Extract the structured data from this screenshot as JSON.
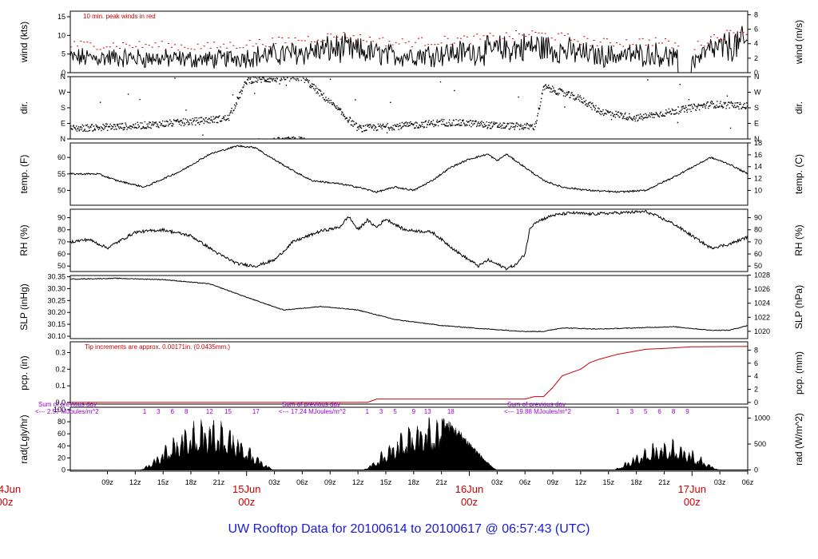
{
  "chart_data": {
    "type": "line",
    "title": "UW Rooftop Data for 20100614  to  20100617 @ 06:57:43  (UTC)",
    "x_hour_labels": [
      "09z",
      "12z",
      "15z",
      "18z",
      "21z",
      "03z",
      "06z",
      "09z",
      "12z",
      "15z",
      "18z",
      "21z",
      "03z",
      "06z",
      "09z",
      "12z",
      "15z",
      "18z",
      "21z",
      "03z",
      "06z"
    ],
    "day_labels": [
      {
        "top": "15Jun",
        "bottom": "00z"
      },
      {
        "top": "16Jun",
        "bottom": "00z"
      },
      {
        "top": "17Jun",
        "bottom": "00z"
      }
    ],
    "left_cut_day_label": {
      "top": "4Jun",
      "bottom": "00z"
    },
    "x_range_hours": [
      5,
      78
    ],
    "panels": [
      {
        "id": "wind",
        "ylabel_left": "wind (kts)",
        "ylabel_right": "wind (m/s)",
        "ylim": [
          0,
          16.5
        ],
        "left_ticks": [
          "0",
          "5",
          "10",
          "15"
        ],
        "left_tick_values": [
          0,
          5,
          10,
          15
        ],
        "right_ticks": [
          "0",
          "2",
          "4",
          "6",
          "8"
        ],
        "right_tick_values": [
          0,
          2,
          4,
          6,
          8
        ],
        "right_factor": 1.944,
        "note": "10 min. peak winds in red",
        "series": [
          {
            "name": "wind speed",
            "color": "#000000"
          },
          {
            "name": "10 min peak",
            "color": "#cc0000"
          }
        ],
        "profile": {
          "x": [
            5,
            10,
            20,
            28,
            34,
            40,
            48,
            55,
            58,
            62,
            68,
            72,
            74,
            78
          ],
          "y": [
            4,
            4,
            3.5,
            5,
            6.5,
            4.5,
            5.5,
            7,
            6,
            4.5,
            5,
            3,
            6,
            8
          ]
        }
      },
      {
        "id": "dir",
        "ylabel_left": "dir.",
        "ylabel_right": "dir.",
        "ylim": [
          0,
          360
        ],
        "left_ticks": [
          "N",
          "E",
          "S",
          "W",
          "N"
        ],
        "left_tick_values": [
          0,
          90,
          180,
          270,
          360
        ],
        "right_ticks": [
          "N",
          "E",
          "S",
          "W",
          "N"
        ],
        "right_tick_values": [
          0,
          90,
          180,
          270,
          360
        ],
        "series": [
          {
            "name": "wind direction",
            "color": "#000000"
          }
        ],
        "profile": {
          "x": [
            5,
            12,
            18,
            22,
            24,
            30,
            36,
            42,
            45,
            48,
            50,
            52,
            55,
            56,
            60,
            62,
            66,
            70,
            74,
            78
          ],
          "y": [
            60,
            75,
            100,
            120,
            340,
            355,
            60,
            80,
            95,
            90,
            80,
            75,
            70,
            300,
            230,
            160,
            120,
            160,
            200,
            190
          ]
        }
      },
      {
        "id": "temp",
        "ylabel_left": "temp. (F)",
        "ylabel_right": "temp. (C)",
        "ylim": [
          45.5,
          64.4
        ],
        "left_ticks": [
          "50",
          "55",
          "60"
        ],
        "left_tick_values": [
          50,
          55,
          60
        ],
        "right_ticks": [
          "10",
          "12",
          "14",
          "16",
          "18"
        ],
        "right_tick_values": [
          10,
          12,
          14,
          16,
          18
        ],
        "series": [
          {
            "name": "temperature",
            "color": "#000000"
          }
        ],
        "profile": {
          "x": [
            5,
            8,
            10,
            13,
            17,
            20,
            23,
            25,
            26,
            29,
            31,
            34,
            36,
            38,
            40,
            42,
            44,
            46,
            48,
            50,
            51,
            52,
            53,
            54,
            56,
            58,
            61,
            64,
            67,
            70,
            72,
            74,
            76,
            78
          ],
          "y": [
            55,
            55,
            53,
            51,
            56,
            61,
            63.5,
            63,
            61,
            56,
            53,
            52,
            51,
            49.5,
            51,
            50,
            53,
            57,
            59.5,
            61,
            59,
            61,
            59,
            57,
            53,
            51,
            50,
            49.5,
            50,
            54,
            57,
            60,
            58,
            55
          ]
        }
      },
      {
        "id": "rh",
        "ylabel_left": "RH (%)",
        "ylabel_right": "RH (%)",
        "ylim": [
          45.5,
          97
        ],
        "left_ticks": [
          "50",
          "60",
          "70",
          "80",
          "90"
        ],
        "left_tick_values": [
          50,
          60,
          70,
          80,
          90
        ],
        "right_ticks": [
          "50",
          "60",
          "70",
          "80",
          "90"
        ],
        "right_tick_values": [
          50,
          60,
          70,
          80,
          90
        ],
        "series": [
          {
            "name": "relative humidity",
            "color": "#000000"
          }
        ],
        "profile": {
          "x": [
            5,
            7,
            9,
            12,
            15,
            18,
            21,
            23,
            25,
            27,
            29,
            32,
            34,
            35,
            36,
            37,
            38,
            39,
            41,
            44,
            47,
            49,
            50,
            52,
            53,
            54,
            54.5,
            55,
            57,
            59,
            61,
            64,
            67,
            68,
            70,
            72,
            74,
            76,
            78
          ],
          "y": [
            70,
            72,
            65,
            78,
            80,
            75,
            60,
            52,
            50,
            55,
            70,
            79,
            82,
            91,
            80,
            88,
            82,
            89,
            80,
            78,
            60,
            50,
            55,
            48,
            51,
            60,
            80,
            86,
            92,
            94,
            93,
            94,
            95,
            92,
            85,
            75,
            65,
            68,
            74
          ]
        }
      },
      {
        "id": "slp",
        "ylabel_left": "SLP (inHg)",
        "ylabel_right": "SLP (hPa)",
        "ylim": [
          30.09,
          30.355
        ],
        "left_ticks": [
          "30.10",
          "30.15",
          "30.20",
          "30.25",
          "30.30",
          "30.35"
        ],
        "left_tick_values": [
          30.1,
          30.15,
          30.2,
          30.25,
          30.3,
          30.35
        ],
        "right_ticks": [
          "1020",
          "1022",
          "1024",
          "1026",
          "1028"
        ],
        "right_tick_values": [
          1020,
          1022,
          1024,
          1026,
          1028
        ],
        "series": [
          {
            "name": "sea level pressure",
            "color": "#000000"
          }
        ],
        "profile": {
          "x": [
            5,
            10,
            15,
            20,
            25,
            28,
            32,
            36,
            40,
            45,
            50,
            54,
            56,
            58,
            62,
            66,
            70,
            74,
            76,
            78
          ],
          "y": [
            30.34,
            30.343,
            30.338,
            30.32,
            30.25,
            30.21,
            30.225,
            30.21,
            30.17,
            30.145,
            30.13,
            30.12,
            30.12,
            30.135,
            30.13,
            30.135,
            30.14,
            30.125,
            30.125,
            30.145
          ]
        }
      },
      {
        "id": "pcp",
        "ylabel_left": "pcp. (in)",
        "ylabel_right": "pcp. (mm)",
        "ylim": [
          -0.01,
          0.365
        ],
        "left_ticks": [
          "0.0",
          "0.1",
          "0.2",
          "0.3"
        ],
        "left_tick_values": [
          0.0,
          0.1,
          0.2,
          0.3
        ],
        "right_ticks": [
          "0",
          "2",
          "4",
          "6",
          "8"
        ],
        "right_tick_values": [
          0,
          2,
          4,
          6,
          8
        ],
        "right_factor": 0.03937,
        "note": "Tip increments are approx. 0.00171in. (0.0435mm.)",
        "series": [
          {
            "name": "cumulative precipitation",
            "color": "#cc0000"
          }
        ],
        "profile": {
          "x": [
            5,
            37,
            38,
            54,
            55,
            56,
            57,
            58,
            60,
            61,
            62,
            64,
            67,
            69,
            72,
            78
          ],
          "y": [
            0,
            0,
            0.02,
            0.02,
            0.035,
            0.035,
            0.09,
            0.16,
            0.2,
            0.24,
            0.26,
            0.29,
            0.32,
            0.325,
            0.335,
            0.337
          ]
        }
      },
      {
        "id": "rad",
        "ylabel_left": "rad(Lgly/hr)",
        "ylabel_right": "rad (W/m^2)",
        "ylim": [
          -2,
          104
        ],
        "left_ticks": [
          "0",
          "20",
          "40",
          "60",
          "80",
          "100"
        ],
        "left_tick_values": [
          0,
          20,
          40,
          60,
          80,
          100
        ],
        "right_ticks": [
          "0",
          "500",
          "1000"
        ],
        "right_tick_values": [
          0,
          500,
          1000
        ],
        "right_factor": 0.086,
        "series": [
          {
            "name": "solar radiation",
            "color": "#000000"
          }
        ],
        "days": [
          {
            "start": 12.5,
            "end": 27,
            "peak": 80
          },
          {
            "start": 36.5,
            "end": 51,
            "peak": 82
          },
          {
            "start": 63.5,
            "end": 75,
            "peak": 45
          }
        ],
        "daily_sums": [
          {
            "line1": "Sum of previous day",
            "line2": "<--- 2.57 MJoules/m^2"
          },
          {
            "line1": "Sum of previous day",
            "line2": "<--- 17.24 MJoules/m^2"
          },
          {
            "line1": "Sum of previous day",
            "line2": "<--- 19.88 MJoules/m^2"
          }
        ],
        "hour_markers": [
          {
            "hours": [
              "1",
              "3",
              "6",
              "8",
              "12",
              "15",
              "17"
            ],
            "x": [
              13,
              14.5,
              16,
              17.5,
              20,
              22,
              25
            ]
          },
          {
            "hours": [
              "1",
              "3",
              "5",
              "9",
              "13",
              "18"
            ],
            "x": [
              37,
              38.5,
              40,
              42,
              43.5,
              46
            ]
          },
          {
            "hours": [
              "1",
              "3",
              "5",
              "6",
              "8",
              "9"
            ],
            "x": [
              64,
              65.5,
              67,
              68.5,
              70,
              71.5
            ]
          }
        ]
      }
    ]
  }
}
